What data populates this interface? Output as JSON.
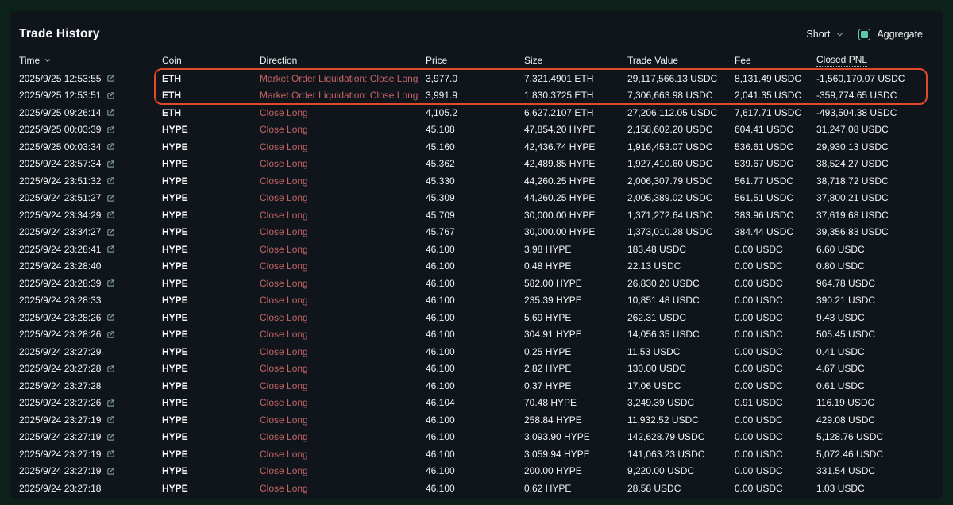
{
  "panel": {
    "title": "Trade History"
  },
  "controls": {
    "filter_label": "Short",
    "aggregate_label": "Aggregate",
    "aggregate_checked": true
  },
  "colors": {
    "highlight_border": "#e2492b",
    "direction_text": "#c46464",
    "mint_accent": "#5ec6b1",
    "panel_bg": "#0f151b",
    "page_bg": "#0c2119"
  },
  "table": {
    "columns": [
      "Time",
      "Coin",
      "Direction",
      "Price",
      "Size",
      "Trade Value",
      "Fee",
      "Closed PNL"
    ],
    "rows": [
      {
        "time": "2025/9/25 12:53:55",
        "link": true,
        "coin": "ETH",
        "direction": "Market Order Liquidation: Close Long",
        "price": "3,977.0",
        "size": "7,321.4901 ETH",
        "value": "29,117,566.13 USDC",
        "fee": "8,131.49 USDC",
        "pnl": "-1,560,170.07 USDC",
        "liq": true
      },
      {
        "time": "2025/9/25 12:53:51",
        "link": true,
        "coin": "ETH",
        "direction": "Market Order Liquidation: Close Long",
        "price": "3,991.9",
        "size": "1,830.3725 ETH",
        "value": "7,306,663.98 USDC",
        "fee": "2,041.35 USDC",
        "pnl": "-359,774.65 USDC",
        "liq": true
      },
      {
        "time": "2025/9/25 09:26:14",
        "link": true,
        "coin": "ETH",
        "direction": "Close Long",
        "price": "4,105.2",
        "size": "6,627.2107 ETH",
        "value": "27,206,112.05 USDC",
        "fee": "7,617.71 USDC",
        "pnl": "-493,504.38 USDC",
        "liq": false
      },
      {
        "time": "2025/9/25 00:03:39",
        "link": true,
        "coin": "HYPE",
        "direction": "Close Long",
        "price": "45.108",
        "size": "47,854.20 HYPE",
        "value": "2,158,602.20 USDC",
        "fee": "604.41 USDC",
        "pnl": "31,247.08 USDC",
        "liq": false
      },
      {
        "time": "2025/9/25 00:03:34",
        "link": true,
        "coin": "HYPE",
        "direction": "Close Long",
        "price": "45.160",
        "size": "42,436.74 HYPE",
        "value": "1,916,453.07 USDC",
        "fee": "536.61 USDC",
        "pnl": "29,930.13 USDC",
        "liq": false
      },
      {
        "time": "2025/9/24 23:57:34",
        "link": true,
        "coin": "HYPE",
        "direction": "Close Long",
        "price": "45.362",
        "size": "42,489.85 HYPE",
        "value": "1,927,410.60 USDC",
        "fee": "539.67 USDC",
        "pnl": "38,524.27 USDC",
        "liq": false
      },
      {
        "time": "2025/9/24 23:51:32",
        "link": true,
        "coin": "HYPE",
        "direction": "Close Long",
        "price": "45.330",
        "size": "44,260.25 HYPE",
        "value": "2,006,307.79 USDC",
        "fee": "561.77 USDC",
        "pnl": "38,718.72 USDC",
        "liq": false
      },
      {
        "time": "2025/9/24 23:51:27",
        "link": true,
        "coin": "HYPE",
        "direction": "Close Long",
        "price": "45.309",
        "size": "44,260.25 HYPE",
        "value": "2,005,389.02 USDC",
        "fee": "561.51 USDC",
        "pnl": "37,800.21 USDC",
        "liq": false
      },
      {
        "time": "2025/9/24 23:34:29",
        "link": true,
        "coin": "HYPE",
        "direction": "Close Long",
        "price": "45.709",
        "size": "30,000.00 HYPE",
        "value": "1,371,272.64 USDC",
        "fee": "383.96 USDC",
        "pnl": "37,619.68 USDC",
        "liq": false
      },
      {
        "time": "2025/9/24 23:34:27",
        "link": true,
        "coin": "HYPE",
        "direction": "Close Long",
        "price": "45.767",
        "size": "30,000.00 HYPE",
        "value": "1,373,010.28 USDC",
        "fee": "384.44 USDC",
        "pnl": "39,356.83 USDC",
        "liq": false
      },
      {
        "time": "2025/9/24 23:28:41",
        "link": true,
        "coin": "HYPE",
        "direction": "Close Long",
        "price": "46.100",
        "size": "3.98 HYPE",
        "value": "183.48 USDC",
        "fee": "0.00 USDC",
        "pnl": "6.60 USDC",
        "liq": false
      },
      {
        "time": "2025/9/24 23:28:40",
        "link": false,
        "coin": "HYPE",
        "direction": "Close Long",
        "price": "46.100",
        "size": "0.48 HYPE",
        "value": "22.13 USDC",
        "fee": "0.00 USDC",
        "pnl": "0.80 USDC",
        "liq": false
      },
      {
        "time": "2025/9/24 23:28:39",
        "link": true,
        "coin": "HYPE",
        "direction": "Close Long",
        "price": "46.100",
        "size": "582.00 HYPE",
        "value": "26,830.20 USDC",
        "fee": "0.00 USDC",
        "pnl": "964.78 USDC",
        "liq": false
      },
      {
        "time": "2025/9/24 23:28:33",
        "link": false,
        "coin": "HYPE",
        "direction": "Close Long",
        "price": "46.100",
        "size": "235.39 HYPE",
        "value": "10,851.48 USDC",
        "fee": "0.00 USDC",
        "pnl": "390.21 USDC",
        "liq": false
      },
      {
        "time": "2025/9/24 23:28:26",
        "link": true,
        "coin": "HYPE",
        "direction": "Close Long",
        "price": "46.100",
        "size": "5.69 HYPE",
        "value": "262.31 USDC",
        "fee": "0.00 USDC",
        "pnl": "9.43 USDC",
        "liq": false
      },
      {
        "time": "2025/9/24 23:28:26",
        "link": true,
        "coin": "HYPE",
        "direction": "Close Long",
        "price": "46.100",
        "size": "304.91 HYPE",
        "value": "14,056.35 USDC",
        "fee": "0.00 USDC",
        "pnl": "505.45 USDC",
        "liq": false
      },
      {
        "time": "2025/9/24 23:27:29",
        "link": false,
        "coin": "HYPE",
        "direction": "Close Long",
        "price": "46.100",
        "size": "0.25 HYPE",
        "value": "11.53 USDC",
        "fee": "0.00 USDC",
        "pnl": "0.41 USDC",
        "liq": false
      },
      {
        "time": "2025/9/24 23:27:28",
        "link": true,
        "coin": "HYPE",
        "direction": "Close Long",
        "price": "46.100",
        "size": "2.82 HYPE",
        "value": "130.00 USDC",
        "fee": "0.00 USDC",
        "pnl": "4.67 USDC",
        "liq": false
      },
      {
        "time": "2025/9/24 23:27:28",
        "link": false,
        "coin": "HYPE",
        "direction": "Close Long",
        "price": "46.100",
        "size": "0.37 HYPE",
        "value": "17.06 USDC",
        "fee": "0.00 USDC",
        "pnl": "0.61 USDC",
        "liq": false
      },
      {
        "time": "2025/9/24 23:27:26",
        "link": true,
        "coin": "HYPE",
        "direction": "Close Long",
        "price": "46.104",
        "size": "70.48 HYPE",
        "value": "3,249.39 USDC",
        "fee": "0.91 USDC",
        "pnl": "116.19 USDC",
        "liq": false
      },
      {
        "time": "2025/9/24 23:27:19",
        "link": true,
        "coin": "HYPE",
        "direction": "Close Long",
        "price": "46.100",
        "size": "258.84 HYPE",
        "value": "11,932.52 USDC",
        "fee": "0.00 USDC",
        "pnl": "429.08 USDC",
        "liq": false
      },
      {
        "time": "2025/9/24 23:27:19",
        "link": true,
        "coin": "HYPE",
        "direction": "Close Long",
        "price": "46.100",
        "size": "3,093.90 HYPE",
        "value": "142,628.79 USDC",
        "fee": "0.00 USDC",
        "pnl": "5,128.76 USDC",
        "liq": false
      },
      {
        "time": "2025/9/24 23:27:19",
        "link": true,
        "coin": "HYPE",
        "direction": "Close Long",
        "price": "46.100",
        "size": "3,059.94 HYPE",
        "value": "141,063.23 USDC",
        "fee": "0.00 USDC",
        "pnl": "5,072.46 USDC",
        "liq": false
      },
      {
        "time": "2025/9/24 23:27:19",
        "link": true,
        "coin": "HYPE",
        "direction": "Close Long",
        "price": "46.100",
        "size": "200.00 HYPE",
        "value": "9,220.00 USDC",
        "fee": "0.00 USDC",
        "pnl": "331.54 USDC",
        "liq": false
      },
      {
        "time": "2025/9/24 23:27:18",
        "link": false,
        "coin": "HYPE",
        "direction": "Close Long",
        "price": "46.100",
        "size": "0.62 HYPE",
        "value": "28.58 USDC",
        "fee": "0.00 USDC",
        "pnl": "1.03 USDC",
        "liq": false
      }
    ],
    "highlight": {
      "row_indexes": [
        0,
        1
      ],
      "border_color": "#e2492b"
    }
  }
}
